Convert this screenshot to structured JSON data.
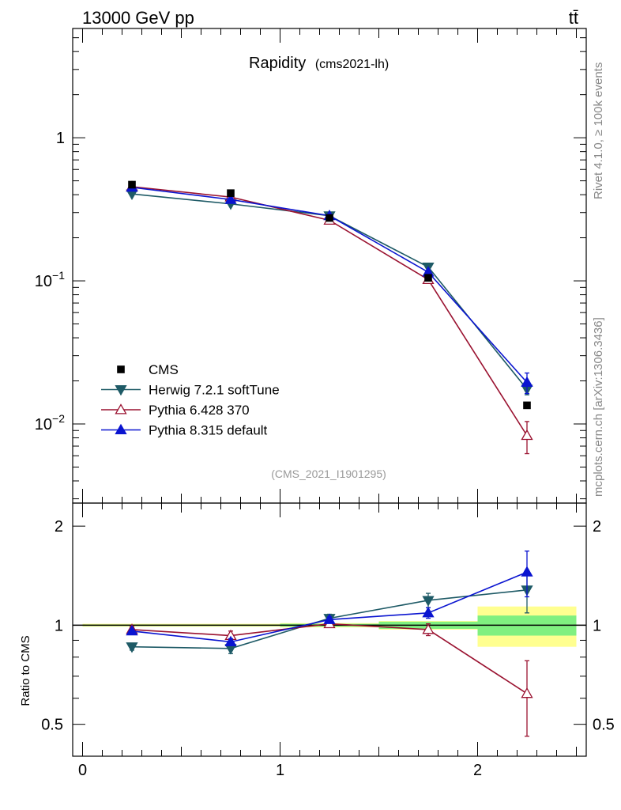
{
  "header": {
    "left": "13000 GeV pp",
    "right": "tt̄"
  },
  "side_labels": {
    "rivet": "Rivet 4.1.0, ≥ 100k events",
    "mcplots": "mcplots.cern.ch [arXiv:1306.3436]"
  },
  "chart_data": [
    {
      "type": "line",
      "title": "Rapidity",
      "subtitle": "(cms2021-lh)",
      "watermark": "(CMS_2021_I1901295)",
      "xlabel": "",
      "ylabel": "",
      "yscale": "log",
      "xlim": [
        -0.05,
        2.55
      ],
      "ylim": [
        0.0028,
        5.8
      ],
      "ytick_labels": [
        {
          "value": 1,
          "base": "1",
          "exp": ""
        },
        {
          "value": 0.1,
          "base": "10",
          "exp": "−1"
        },
        {
          "value": 0.01,
          "base": "10",
          "exp": "−2"
        }
      ],
      "x": [
        0.25,
        0.75,
        1.25,
        1.75,
        2.25
      ],
      "legend_position": "lower-left",
      "series": [
        {
          "name": "CMS",
          "color": "#000000",
          "marker": "square",
          "values": [
            0.47,
            0.41,
            0.275,
            0.105,
            0.0135
          ]
        },
        {
          "name": "Herwig 7.2.1 softTune",
          "color": "#1e5a66",
          "marker": "triangle-down",
          "values": [
            0.405,
            0.345,
            0.285,
            0.125,
            0.0175
          ],
          "errors": [
            0,
            0,
            0,
            0,
            0.0015
          ]
        },
        {
          "name": "Pythia 6.428 370",
          "color": "#9a1230",
          "marker": "triangle-up-open",
          "values": [
            0.455,
            0.385,
            0.265,
            0.102,
            0.0083
          ],
          "errors": [
            0,
            0,
            0,
            0,
            0.0021
          ]
        },
        {
          "name": "Pythia 8.315 default",
          "color": "#0a14d0",
          "marker": "triangle-up",
          "values": [
            0.45,
            0.37,
            0.285,
            0.115,
            0.0195
          ],
          "errors": [
            0,
            0,
            0,
            0,
            0.0032
          ]
        }
      ]
    },
    {
      "type": "line",
      "ylabel": "Ratio to CMS",
      "xlabel": "",
      "yscale": "log",
      "xlim": [
        -0.05,
        2.55
      ],
      "ylim": [
        0.4,
        2.35
      ],
      "ytick_labels": [
        {
          "value": 0.5,
          "label": "0.5"
        },
        {
          "value": 1,
          "label": "1"
        },
        {
          "value": 2,
          "label": "2"
        }
      ],
      "xtick_labels": [
        {
          "value": 0,
          "label": "0"
        },
        {
          "value": 1,
          "label": "1"
        },
        {
          "value": 2,
          "label": "2"
        }
      ],
      "x": [
        0.25,
        0.75,
        1.25,
        1.75,
        2.25
      ],
      "bin_edges": [
        0,
        0.5,
        1.0,
        1.5,
        2.0,
        2.5
      ],
      "data_band_inner": [
        0.005,
        0.005,
        0.01,
        0.025,
        0.07
      ],
      "data_band_outer": [
        0.01,
        0.01,
        0.015,
        0.03,
        0.14
      ],
      "band_colors": {
        "inner": "#80f080",
        "outer": "#ffff90"
      },
      "series": [
        {
          "name": "Herwig 7.2.1 softTune",
          "color": "#1e5a66",
          "marker": "triangle-down",
          "values": [
            0.86,
            0.85,
            1.05,
            1.19,
            1.28
          ],
          "errors": [
            0.02,
            0.03,
            0.03,
            0.06,
            0.19
          ]
        },
        {
          "name": "Pythia 6.428 370",
          "color": "#9a1230",
          "marker": "triangle-up-open",
          "values": [
            0.97,
            0.93,
            1.01,
            0.97,
            0.62
          ],
          "errors": [
            0.02,
            0.03,
            0.02,
            0.04,
            0.16
          ]
        },
        {
          "name": "Pythia 8.315 default",
          "color": "#0a14d0",
          "marker": "triangle-up",
          "values": [
            0.96,
            0.89,
            1.04,
            1.09,
            1.45
          ],
          "errors": [
            0.01,
            0.02,
            0.02,
            0.04,
            0.23
          ]
        }
      ]
    }
  ]
}
